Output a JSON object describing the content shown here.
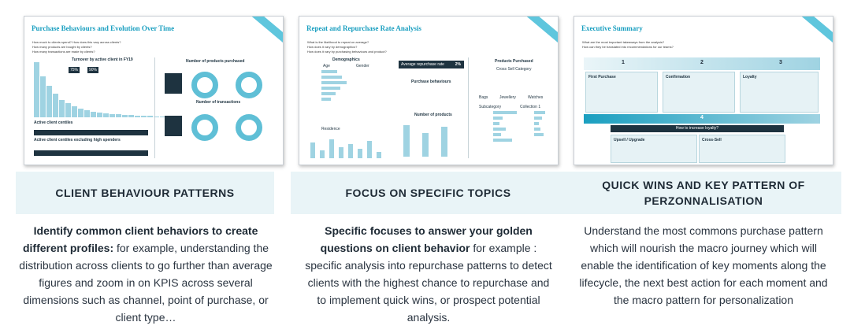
{
  "colors": {
    "accent": "#1a9fc0",
    "band": "#e9f4f7",
    "dark": "#1e3340"
  },
  "slides": [
    {
      "title": "Purchase Behaviours and Evolution Over Time",
      "questions": [
        "How much to clients spend? How does this vary across clients?",
        "How many products are bought by clients?",
        "How many transactions are made by clients?"
      ],
      "section_a": "Turnover by active client in FY19",
      "section_b": "Number of products purchased",
      "section_c": "Number of transactions",
      "section_d": "Active client centiles",
      "section_e": "Active client centiles excluding high spenders",
      "badge_1": "75%",
      "badge_2": "90%"
    },
    {
      "title": "Repeat and Repurchase Rate Analysis",
      "questions": [
        "What is the likelihood to repeat on average?",
        "How does it vary by demographics?",
        "How does it vary by purchasing behaviours and product?"
      ],
      "section_a": "Demographics",
      "section_b": "Average repurchase rate",
      "section_b_value": "2%",
      "section_c": "Products Purchased",
      "section_d": "Purchase behaviours",
      "section_e": "Number of products",
      "labels": [
        "Age",
        "Gender",
        "Residence",
        "Bags",
        "Jewellery",
        "Watches",
        "Subcategory",
        "Collection 1",
        "Cross Sell Category"
      ]
    },
    {
      "title": "Executive Summary",
      "questions": [
        "What are the most important takeaways from the analysis?",
        "How can they be translated into recommendations for our teams?"
      ],
      "steps": [
        "1",
        "2",
        "3",
        "4"
      ],
      "cards": [
        "First Purchase",
        "Confirmation",
        "Loyalty",
        "Upsell / Upgrade",
        "Cross-Sell"
      ],
      "banner": "How to increase loyalty?"
    }
  ],
  "columns": [
    {
      "heading": "CLIENT BEHAVIOUR PATTERNS",
      "bold": "Identify common client behaviors to create different profiles:",
      "text": " for example, understanding the distribution across clients to go further than average figures and zoom in on KPIS across several dimensions such as channel, point of purchase, or client type…"
    },
    {
      "heading": "FOCUS ON SPECIFIC TOPICS",
      "bold": "Specific focuses to answer your golden questions on client behavior",
      "text": " for example : specific analysis into repurchase patterns to detect clients with the highest chance to repurchase and to implement quick wins, or prospect potential analysis."
    },
    {
      "heading": "QUICK WINS AND KEY PATTERN OF PERZONNALISATION",
      "bold": "",
      "text": "Understand the most commons purchase pattern which will nourish the macro journey which will enable the identification of key moments along the lifecycle, the next best action for each moment and the macro pattern for personalization"
    }
  ]
}
